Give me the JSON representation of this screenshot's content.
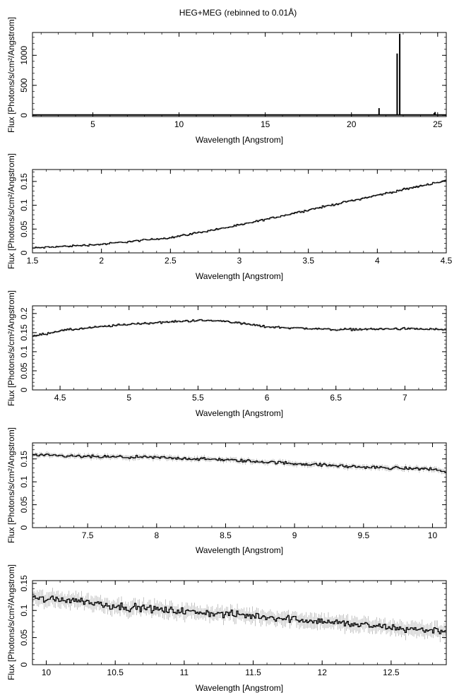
{
  "page_title": "HEG+MEG (rebinned to 0.01Å)",
  "colors": {
    "data": "#000000",
    "errorbars": "#9a9a9a",
    "axes": "#000000",
    "background": "#ffffff"
  },
  "chart_data": [
    {
      "type": "line",
      "xlabel": "Wavelength [Angstrom]",
      "ylabel": "Flux [Photons/s/cm²/Angstrom]",
      "xlim": [
        1.5,
        25.5
      ],
      "ylim": [
        -20,
        1380
      ],
      "grid": false,
      "xticks": [
        5,
        10,
        15,
        20,
        25
      ],
      "xtick_labels": [
        "5",
        "10",
        "15",
        "20",
        "25"
      ],
      "yticks": [
        0,
        500,
        1000
      ],
      "ytick_labels": [
        "0",
        "500",
        "1000"
      ],
      "x_step": 0.01,
      "series": [
        {
          "baseline": 0.15,
          "points": [
            [
              21.6,
              120
            ],
            [
              22.1,
              8
            ],
            [
              22.65,
              1030
            ],
            [
              22.8,
              1360
            ],
            [
              24.8,
              40
            ],
            [
              24.85,
              55
            ]
          ]
        }
      ]
    },
    {
      "type": "line",
      "xlabel": "Wavelength [Angstrom]",
      "ylabel": "Flux [Photons/s/cm²/Angstrom]",
      "xlim": [
        1.5,
        4.5
      ],
      "ylim": [
        0,
        0.175
      ],
      "grid": false,
      "xticks": [
        1.5,
        2,
        2.5,
        3,
        3.5,
        4,
        4.5
      ],
      "xtick_labels": [
        "1.5",
        "2",
        "2.5",
        "3",
        "3.5",
        "4",
        "4.5"
      ],
      "yticks": [
        0,
        0.05,
        0.1,
        0.15
      ],
      "ytick_labels": [
        "0",
        "0.05",
        "0.1",
        "0.15"
      ],
      "x_step": 0.01,
      "series": [
        {
          "trend_x": [
            1.5,
            2,
            2.5,
            3,
            3.5,
            4,
            4.5
          ],
          "trend_y": [
            0.01,
            0.018,
            0.032,
            0.058,
            0.09,
            0.121,
            0.152
          ],
          "noise": 0.003,
          "err": 0.002
        }
      ]
    },
    {
      "type": "line",
      "xlabel": "Wavelength [Angstrom]",
      "ylabel": "Flux [Photons/s/cm²/Angstrom]",
      "xlim": [
        4.3,
        7.3
      ],
      "ylim": [
        0,
        0.22
      ],
      "grid": false,
      "xticks": [
        4.5,
        5,
        5.5,
        6,
        6.5,
        7
      ],
      "xtick_labels": [
        "4.5",
        "5",
        "5.5",
        "6",
        "6.5",
        "7"
      ],
      "yticks": [
        0,
        0.05,
        0.1,
        0.15,
        0.2
      ],
      "ytick_labels": [
        "0",
        "0.05",
        "0.1",
        "0.15",
        "0.2"
      ],
      "x_step": 0.01,
      "series": [
        {
          "trend_x": [
            4.3,
            4.5,
            5,
            5.5,
            5.7,
            6,
            6.5,
            7,
            7.3
          ],
          "trend_y": [
            0.14,
            0.155,
            0.172,
            0.182,
            0.18,
            0.165,
            0.158,
            0.16,
            0.158
          ],
          "noise": 0.004,
          "err": 0.003
        }
      ]
    },
    {
      "type": "line",
      "xlabel": "Wavelength [Angstrom]",
      "ylabel": "Flux [Photons/s/cm²/Angstrom]",
      "xlim": [
        7.1,
        10.1
      ],
      "ylim": [
        0,
        0.185
      ],
      "grid": false,
      "xticks": [
        7.5,
        8,
        8.5,
        9,
        9.5,
        10
      ],
      "xtick_labels": [
        "7.5",
        "8",
        "8.5",
        "9",
        "9.5",
        "10"
      ],
      "yticks": [
        0,
        0.05,
        0.1,
        0.15
      ],
      "ytick_labels": [
        "0",
        "0.05",
        "0.1",
        "0.15"
      ],
      "x_step": 0.01,
      "series": [
        {
          "trend_x": [
            7.1,
            7.5,
            8,
            8.5,
            9,
            9.5,
            10,
            10.1
          ],
          "trend_y": [
            0.158,
            0.155,
            0.153,
            0.148,
            0.14,
            0.132,
            0.128,
            0.122
          ],
          "noise": 0.005,
          "err": 0.005
        }
      ]
    },
    {
      "type": "line",
      "xlabel": "Wavelength [Angstrom]",
      "ylabel": "Flux [Photons/s/cm²/Angstrom]",
      "xlim": [
        9.9,
        12.9
      ],
      "ylim": [
        0,
        0.155
      ],
      "grid": false,
      "xticks": [
        10,
        10.5,
        11,
        11.5,
        12,
        12.5
      ],
      "xtick_labels": [
        "10",
        "10.5",
        "11",
        "11.5",
        "12",
        "12.5"
      ],
      "yticks": [
        0,
        0.05,
        0.1,
        0.15
      ],
      "ytick_labels": [
        "0",
        "0.05",
        "0.1",
        "0.15"
      ],
      "x_step": 0.01,
      "series": [
        {
          "trend_x": [
            9.9,
            10.2,
            10.5,
            11,
            11.5,
            12,
            12.5,
            12.9
          ],
          "trend_y": [
            0.122,
            0.12,
            0.108,
            0.098,
            0.09,
            0.08,
            0.068,
            0.062
          ],
          "noise": 0.01,
          "err": 0.012
        }
      ]
    }
  ]
}
